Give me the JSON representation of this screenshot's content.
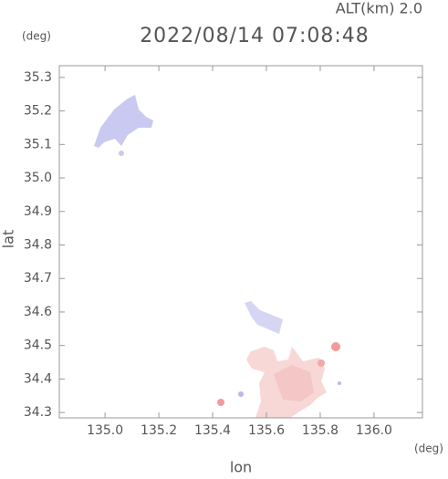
{
  "chart_data": {
    "type": "radar-map",
    "altitude_label": "ALT(km) 2.0",
    "title": "2022/08/14 07:08:48",
    "y_unit": "(deg)",
    "x_unit": "(deg)",
    "x_label": "lon",
    "y_label": "lat",
    "xlim": [
      134.83,
      136.18
    ],
    "ylim": [
      34.284,
      35.335
    ],
    "xticks": [
      {
        "value": 135,
        "label": "135.0"
      },
      135.2,
      135.4,
      135.6,
      135.8,
      {
        "value": 136,
        "label": "136.0"
      }
    ],
    "yticks": [
      34.3,
      34.4,
      34.5,
      34.6,
      34.7,
      34.8,
      34.9,
      {
        "value": 35,
        "label": "35.0"
      },
      35.1,
      35.2,
      35.3
    ]
  }
}
